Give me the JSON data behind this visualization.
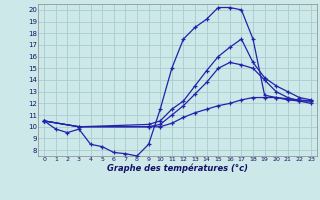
{
  "title": "Graphe des températures (°c)",
  "bg_color": "#cde8e8",
  "grid_color": "#aacccc",
  "line_color": "#2222aa",
  "xlim": [
    -0.5,
    23.5
  ],
  "ylim": [
    7.5,
    20.5
  ],
  "xticks": [
    0,
    1,
    2,
    3,
    4,
    5,
    6,
    7,
    8,
    9,
    10,
    11,
    12,
    13,
    14,
    15,
    16,
    17,
    18,
    19,
    20,
    21,
    22,
    23
  ],
  "yticks": [
    8,
    9,
    10,
    11,
    12,
    13,
    14,
    15,
    16,
    17,
    18,
    19,
    20
  ],
  "curve1_x": [
    0,
    1,
    2,
    3,
    4,
    5,
    6,
    7,
    8,
    9,
    10,
    11,
    12,
    13,
    14,
    15,
    16,
    17,
    18,
    19,
    20,
    21,
    22,
    23
  ],
  "curve1_y": [
    10.5,
    9.8,
    9.5,
    9.8,
    8.5,
    8.3,
    7.8,
    7.7,
    7.5,
    8.5,
    11.5,
    15.0,
    17.5,
    18.5,
    19.2,
    20.2,
    20.2,
    20.0,
    17.5,
    12.7,
    12.5,
    12.3,
    12.2,
    12.2
  ],
  "curve2_x": [
    0,
    3,
    9,
    10,
    11,
    12,
    13,
    14,
    15,
    16,
    17,
    18,
    19,
    20,
    21,
    22,
    23
  ],
  "curve2_y": [
    10.5,
    10.0,
    10.2,
    10.5,
    11.5,
    12.2,
    13.5,
    14.8,
    16.0,
    16.8,
    17.5,
    15.5,
    14.2,
    13.5,
    13.0,
    12.5,
    12.3
  ],
  "curve3_x": [
    0,
    3,
    9,
    10,
    11,
    12,
    13,
    14,
    15,
    16,
    17,
    18,
    19,
    20,
    21,
    22,
    23
  ],
  "curve3_y": [
    10.5,
    10.0,
    10.0,
    10.2,
    11.0,
    11.8,
    12.8,
    13.8,
    15.0,
    15.5,
    15.3,
    15.0,
    14.0,
    13.0,
    12.5,
    12.2,
    12.0
  ],
  "curve4_x": [
    0,
    3,
    9,
    10,
    11,
    12,
    13,
    14,
    15,
    16,
    17,
    18,
    19,
    20,
    21,
    22,
    23
  ],
  "curve4_y": [
    10.5,
    10.0,
    10.0,
    10.0,
    10.3,
    10.8,
    11.2,
    11.5,
    11.8,
    12.0,
    12.3,
    12.5,
    12.5,
    12.5,
    12.4,
    12.3,
    12.2
  ]
}
